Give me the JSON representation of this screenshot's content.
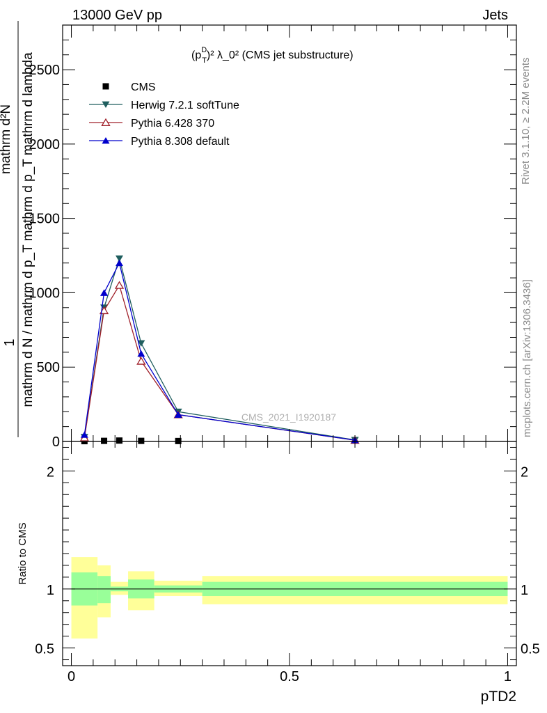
{
  "header": {
    "left": "13000 GeV pp",
    "right": "Jets"
  },
  "side_labels": {
    "rivet": "Rivet 3.1.10, ≥ 2.2M events",
    "mcplots": "mcplots.cern.ch [arXiv:1306.3436]"
  },
  "chart_data": [
    {
      "type": "line",
      "panel": "main",
      "title_base": "(p",
      "title_sup": "D",
      "title_sub": "T",
      "title_tail": ")² λ_0² (CMS jet substructure)",
      "watermark": "CMS_2021_I1920187",
      "ylabel_num": "1",
      "ylabel_den": "mathrm d N / mathrm d p_T mathrm d p_T mathrm d lambda",
      "ylabel_num2": "mathrm d²N",
      "xlim": [
        -0.02,
        1.02
      ],
      "ylim": [
        0,
        2800
      ],
      "ytick_values": [
        0,
        500,
        1000,
        1500,
        2000,
        2500
      ],
      "ytick_labels": [
        "0",
        "500",
        "1000",
        "1500",
        "2000",
        "2500"
      ],
      "legend_position": "top-left",
      "series": [
        {
          "name": "CMS",
          "marker": "square",
          "color": "#000000",
          "x": [
            0.03,
            0.075,
            0.11,
            0.16,
            0.245
          ],
          "y": [
            2,
            4,
            6,
            4,
            3
          ]
        },
        {
          "name": "Herwig 7.2.1 softTune",
          "marker": "triangle-down",
          "color": "#1f5e5e",
          "x": [
            0.03,
            0.075,
            0.11,
            0.16,
            0.245,
            0.65
          ],
          "y": [
            30,
            900,
            1230,
            660,
            200,
            10
          ]
        },
        {
          "name": "Pythia 6.428 370",
          "marker": "triangle-up-open",
          "color": "#a0202a",
          "x": [
            0.03,
            0.075,
            0.11,
            0.16,
            0.245,
            0.65
          ],
          "y": [
            25,
            880,
            1050,
            540,
            180,
            8
          ]
        },
        {
          "name": "Pythia 8.308 default",
          "marker": "triangle-up",
          "color": "#0000cc",
          "x": [
            0.03,
            0.075,
            0.11,
            0.16,
            0.245,
            0.65
          ],
          "y": [
            45,
            1000,
            1200,
            590,
            180,
            9
          ]
        }
      ]
    },
    {
      "type": "area",
      "panel": "ratio",
      "ylabel": "Ratio to CMS",
      "xlabel": "pTD2",
      "xlim": [
        -0.02,
        1.02
      ],
      "ylim": [
        0.35,
        2.25
      ],
      "ytick_values": [
        0.5,
        1,
        2
      ],
      "ytick_labels": [
        "0.5",
        "1",
        "2"
      ],
      "xtick_values": [
        0,
        0.5,
        1
      ],
      "xtick_labels": [
        "0",
        "0.5",
        "1"
      ],
      "reference_line": 1,
      "bands": [
        {
          "x0": 0.0,
          "x1": 0.06,
          "stat": [
            0.86,
            1.14
          ],
          "total": [
            0.58,
            1.27
          ]
        },
        {
          "x0": 0.06,
          "x1": 0.09,
          "stat": [
            0.88,
            1.11
          ],
          "total": [
            0.76,
            1.2
          ]
        },
        {
          "x0": 0.09,
          "x1": 0.13,
          "stat": [
            0.98,
            1.02
          ],
          "total": [
            0.95,
            1.06
          ]
        },
        {
          "x0": 0.13,
          "x1": 0.19,
          "stat": [
            0.92,
            1.08
          ],
          "total": [
            0.82,
            1.15
          ]
        },
        {
          "x0": 0.19,
          "x1": 0.3,
          "stat": [
            0.97,
            1.03
          ],
          "total": [
            0.94,
            1.07
          ]
        },
        {
          "x0": 0.3,
          "x1": 1.0,
          "stat": [
            0.94,
            1.06
          ],
          "total": [
            0.87,
            1.11
          ]
        }
      ],
      "band_colors": {
        "stat": "#99ff99",
        "total": "#ffff99"
      }
    }
  ]
}
